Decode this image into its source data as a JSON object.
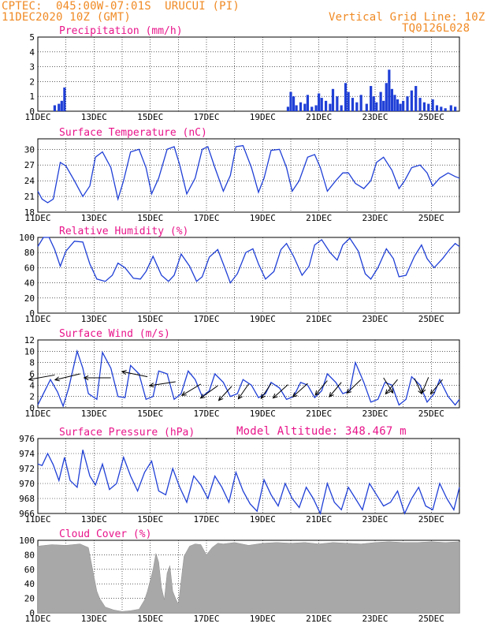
{
  "header": {
    "line1": "CPTEC:  045:00W-07:01S  URUCUI (PI)",
    "line2": "11DEC2020 10Z (GMT)",
    "grid_note": "Vertical Grid Line: 10Z",
    "code": "TQ0126L028",
    "model_altitude": "Model Altitude: 348.467 m"
  },
  "colors": {
    "header_text": "#f08a24",
    "panel_title": "#e8148a",
    "series_line": "#1f3fd6",
    "precip_bar": "#1f3fd6",
    "cloud_fill": "#a8a8a8",
    "wind_arrow": "#000000",
    "grid": "#000000"
  },
  "chart_data": [
    {
      "type": "bar",
      "title": "Precipitation (mm/h)",
      "ylim": [
        0,
        5
      ],
      "yticks": [
        "0",
        "1",
        "2",
        "3",
        "4",
        "5"
      ],
      "xticks": [
        "11DEC",
        "13DEC",
        "15DEC",
        "17DEC",
        "19DEC",
        "21DEC",
        "23DEC",
        "25DEC"
      ],
      "x_unit": "day",
      "x_range": [
        0,
        15
      ],
      "values": [
        [
          0.6,
          0.4
        ],
        [
          0.75,
          0.5
        ],
        [
          0.85,
          0.7
        ],
        [
          0.95,
          1.6
        ],
        [
          8.9,
          0.3
        ],
        [
          9.0,
          1.3
        ],
        [
          9.1,
          1.0
        ],
        [
          9.2,
          0.4
        ],
        [
          9.35,
          0.6
        ],
        [
          9.5,
          0.5
        ],
        [
          9.6,
          1.1
        ],
        [
          9.75,
          0.3
        ],
        [
          9.9,
          0.4
        ],
        [
          10.0,
          1.2
        ],
        [
          10.1,
          0.9
        ],
        [
          10.25,
          0.7
        ],
        [
          10.4,
          0.5
        ],
        [
          10.5,
          1.5
        ],
        [
          10.65,
          1.0
        ],
        [
          10.8,
          0.4
        ],
        [
          10.95,
          1.9
        ],
        [
          11.05,
          1.3
        ],
        [
          11.2,
          0.9
        ],
        [
          11.35,
          0.6
        ],
        [
          11.5,
          1.1
        ],
        [
          11.7,
          0.5
        ],
        [
          11.85,
          1.7
        ],
        [
          11.95,
          1.0
        ],
        [
          12.05,
          0.6
        ],
        [
          12.2,
          1.3
        ],
        [
          12.3,
          0.7
        ],
        [
          12.4,
          1.9
        ],
        [
          12.5,
          2.8
        ],
        [
          12.6,
          1.5
        ],
        [
          12.7,
          1.1
        ],
        [
          12.8,
          0.8
        ],
        [
          12.9,
          0.5
        ],
        [
          13.0,
          0.7
        ],
        [
          13.15,
          1.0
        ],
        [
          13.3,
          1.4
        ],
        [
          13.45,
          1.7
        ],
        [
          13.6,
          0.9
        ],
        [
          13.75,
          0.6
        ],
        [
          13.9,
          0.5
        ],
        [
          14.05,
          0.8
        ],
        [
          14.2,
          0.4
        ],
        [
          14.35,
          0.3
        ],
        [
          14.5,
          0.2
        ],
        [
          14.7,
          0.4
        ],
        [
          14.85,
          0.3
        ]
      ]
    },
    {
      "type": "line",
      "title": "Surface Temperature (nC)",
      "ylim": [
        18,
        32
      ],
      "yticks": [
        "18",
        "21",
        "24",
        "27",
        "30"
      ],
      "x": [
        0,
        0.15,
        0.35,
        0.55,
        0.8,
        1.0,
        1.3,
        1.6,
        1.85,
        2.05,
        2.3,
        2.6,
        2.85,
        3.05,
        3.3,
        3.6,
        3.85,
        4.05,
        4.3,
        4.6,
        4.85,
        5.05,
        5.3,
        5.6,
        5.85,
        6.05,
        6.3,
        6.6,
        6.85,
        7.05,
        7.3,
        7.6,
        7.85,
        8.05,
        8.3,
        8.6,
        8.85,
        9.05,
        9.3,
        9.6,
        9.85,
        10.05,
        10.3,
        10.6,
        10.85,
        11.05,
        11.3,
        11.6,
        11.85,
        12.05,
        12.3,
        12.6,
        12.85,
        13.05,
        13.3,
        13.6,
        13.85,
        14.05,
        14.3,
        14.6,
        14.85,
        15.0
      ],
      "y": [
        22,
        20.5,
        19.8,
        20.5,
        27.5,
        26.8,
        24,
        21,
        23,
        28.5,
        29.5,
        26.5,
        20.5,
        24,
        29.5,
        30,
        26.5,
        21.5,
        24.5,
        30,
        30.5,
        27,
        21.5,
        24.5,
        30,
        30.5,
        26.5,
        22,
        25,
        30.5,
        30.7,
        26.5,
        21.8,
        24.5,
        29.8,
        30,
        26.5,
        22,
        24,
        28.5,
        29,
        26.5,
        22,
        24,
        25.5,
        25.5,
        23.5,
        22.5,
        24,
        27.5,
        28.5,
        26,
        22.5,
        24,
        26.5,
        27,
        25.5,
        23,
        24.5,
        25.5,
        24.8,
        24.5
      ]
    },
    {
      "type": "line",
      "title": "Relative Humidity (%)",
      "ylim": [
        0,
        100
      ],
      "yticks": [
        "0",
        "20",
        "40",
        "60",
        "80",
        "100"
      ],
      "x": [
        0,
        0.2,
        0.4,
        0.6,
        0.8,
        1.0,
        1.3,
        1.6,
        1.85,
        2.1,
        2.4,
        2.65,
        2.85,
        3.1,
        3.4,
        3.65,
        3.85,
        4.1,
        4.4,
        4.65,
        4.85,
        5.1,
        5.4,
        5.65,
        5.85,
        6.1,
        6.4,
        6.65,
        6.85,
        7.1,
        7.4,
        7.65,
        7.85,
        8.1,
        8.4,
        8.65,
        8.85,
        9.1,
        9.4,
        9.65,
        9.85,
        10.1,
        10.4,
        10.65,
        10.85,
        11.1,
        11.4,
        11.65,
        11.85,
        12.1,
        12.4,
        12.65,
        12.85,
        13.1,
        13.4,
        13.65,
        13.85,
        14.1,
        14.4,
        14.65,
        14.85,
        15.0
      ],
      "y": [
        88,
        100,
        100,
        84,
        62,
        82,
        95,
        94,
        65,
        45,
        42,
        50,
        66,
        60,
        46,
        45,
        55,
        75,
        50,
        42,
        50,
        78,
        62,
        42,
        48,
        74,
        84,
        60,
        40,
        52,
        80,
        85,
        65,
        45,
        55,
        84,
        92,
        75,
        50,
        62,
        90,
        97,
        80,
        70,
        90,
        99,
        82,
        52,
        45,
        60,
        85,
        72,
        48,
        50,
        75,
        90,
        72,
        60,
        72,
        84,
        92,
        88
      ]
    },
    {
      "type": "line",
      "title": "Surface Wind (m/s)",
      "ylim": [
        0,
        12
      ],
      "yticks": [
        "0",
        "2",
        "4",
        "6",
        "8",
        "10",
        "12"
      ],
      "x": [
        0,
        0.2,
        0.45,
        0.7,
        0.9,
        1.1,
        1.4,
        1.6,
        1.8,
        2.1,
        2.3,
        2.6,
        2.85,
        3.1,
        3.3,
        3.6,
        3.85,
        4.1,
        4.3,
        4.6,
        4.85,
        5.1,
        5.35,
        5.6,
        5.85,
        6.1,
        6.3,
        6.6,
        6.85,
        7.1,
        7.3,
        7.6,
        7.85,
        8.1,
        8.3,
        8.6,
        8.85,
        9.1,
        9.35,
        9.6,
        9.85,
        10.1,
        10.3,
        10.6,
        10.85,
        11.1,
        11.3,
        11.6,
        11.85,
        12.1,
        12.35,
        12.6,
        12.85,
        13.1,
        13.3,
        13.6,
        13.85,
        14.1,
        14.3,
        14.6,
        14.85,
        15.0
      ],
      "y": [
        0.5,
        2.5,
        5.0,
        2.8,
        0.3,
        3.5,
        10.0,
        7.0,
        2.5,
        1.5,
        9.8,
        7.0,
        2.0,
        1.8,
        7.5,
        6.0,
        1.5,
        2.0,
        6.5,
        6.0,
        1.5,
        2.5,
        6.5,
        5.0,
        2.0,
        3.0,
        6.0,
        4.5,
        2.0,
        2.5,
        5.0,
        4.0,
        1.8,
        2.5,
        4.5,
        3.5,
        1.5,
        2.0,
        4.5,
        4.0,
        1.8,
        3.0,
        6.0,
        4.5,
        2.5,
        3.0,
        8.0,
        4.5,
        1.0,
        1.5,
        4.5,
        4.0,
        0.5,
        1.5,
        5.5,
        4.0,
        1.0,
        2.5,
        5.0,
        2.0,
        0.5,
        1.5
      ],
      "arrows": [
        {
          "x": 0.6,
          "y": 5.8,
          "dx": 1.0,
          "dy": 0.3
        },
        {
          "x": 1.5,
          "y": 6.0,
          "dx": 1.0,
          "dy": 0.4
        },
        {
          "x": 2.6,
          "y": 5.3,
          "dx": 1.0,
          "dy": 0.0
        },
        {
          "x": 3.9,
          "y": 5.5,
          "dx": 0.9,
          "dy": -0.3
        },
        {
          "x": 4.9,
          "y": 4.6,
          "dx": 0.8,
          "dy": 0.2
        },
        {
          "x": 5.8,
          "y": 4.2,
          "dx": 0.7,
          "dy": 0.7
        },
        {
          "x": 6.4,
          "y": 3.9,
          "dx": 0.5,
          "dy": 0.6
        },
        {
          "x": 6.9,
          "y": 3.8,
          "dx": 0.5,
          "dy": 0.9
        },
        {
          "x": 7.5,
          "y": 4.2,
          "dx": 0.5,
          "dy": 1.2
        },
        {
          "x": 8.3,
          "y": 4.3,
          "dx": 0.4,
          "dy": 1.0
        },
        {
          "x": 8.9,
          "y": 4.1,
          "dx": 0.6,
          "dy": 0.9
        },
        {
          "x": 9.6,
          "y": 4.3,
          "dx": 0.6,
          "dy": 0.9
        },
        {
          "x": 10.3,
          "y": 4.8,
          "dx": 0.4,
          "dy": 0.8
        },
        {
          "x": 10.8,
          "y": 4.5,
          "dx": 0.4,
          "dy": 0.8
        },
        {
          "x": 11.5,
          "y": 5.0,
          "dx": 0.5,
          "dy": 0.8
        },
        {
          "x": 12.3,
          "y": 5.3,
          "dx": -0.3,
          "dy": 0.8
        },
        {
          "x": 12.8,
          "y": 5.0,
          "dx": 0.3,
          "dy": 0.6
        },
        {
          "x": 13.4,
          "y": 5.2,
          "dx": -0.2,
          "dy": 0.7
        },
        {
          "x": 13.9,
          "y": 5.4,
          "dx": 0.2,
          "dy": 0.8
        },
        {
          "x": 14.4,
          "y": 5.0,
          "dx": 0.3,
          "dy": 0.6
        }
      ]
    },
    {
      "type": "line",
      "title": "Surface Pressure (hPa)",
      "ylim": [
        966,
        976
      ],
      "yticks": [
        "966",
        "968",
        "970",
        "972",
        "974",
        "976"
      ],
      "x": [
        0,
        0.15,
        0.35,
        0.55,
        0.75,
        0.95,
        1.15,
        1.4,
        1.6,
        1.85,
        2.05,
        2.3,
        2.55,
        2.8,
        3.05,
        3.3,
        3.55,
        3.8,
        4.05,
        4.3,
        4.55,
        4.8,
        5.05,
        5.3,
        5.55,
        5.8,
        6.05,
        6.3,
        6.55,
        6.8,
        7.05,
        7.3,
        7.55,
        7.8,
        8.05,
        8.3,
        8.55,
        8.8,
        9.05,
        9.3,
        9.55,
        9.8,
        10.05,
        10.3,
        10.55,
        10.8,
        11.05,
        11.3,
        11.55,
        11.8,
        12.05,
        12.3,
        12.55,
        12.8,
        13.05,
        13.3,
        13.55,
        13.8,
        14.05,
        14.3,
        14.55,
        14.8,
        15.0
      ],
      "y": [
        972.6,
        972.4,
        974.0,
        972.5,
        970.4,
        973.5,
        970.4,
        969.5,
        974.5,
        971.0,
        969.8,
        972.6,
        969.2,
        970.0,
        973.5,
        971.0,
        969.0,
        971.5,
        973.0,
        969.0,
        968.5,
        972.0,
        969.5,
        967.5,
        971.0,
        969.8,
        968.0,
        971.0,
        969.5,
        967.5,
        971.5,
        969.0,
        967.3,
        966.3,
        970.5,
        968.5,
        967.0,
        970.0,
        968.0,
        966.8,
        969.5,
        968.0,
        966.0,
        970.0,
        967.5,
        966.5,
        969.5,
        968.0,
        966.5,
        970.0,
        968.5,
        967.0,
        967.5,
        969.0,
        966.0,
        968.0,
        969.5,
        967.0,
        966.5,
        970.0,
        968.0,
        966.5,
        969.5
      ]
    },
    {
      "type": "area",
      "title": "Cloud Cover (%)",
      "ylim": [
        0,
        100
      ],
      "yticks": [
        "0",
        "20",
        "40",
        "60",
        "80",
        "100"
      ],
      "x": [
        0,
        0.5,
        1.0,
        1.5,
        1.8,
        2.0,
        2.1,
        2.2,
        2.4,
        2.7,
        3.0,
        3.3,
        3.6,
        3.8,
        3.9,
        4.0,
        4.1,
        4.2,
        4.3,
        4.4,
        4.5,
        4.6,
        4.7,
        4.8,
        4.9,
        5.0,
        5.1,
        5.2,
        5.3,
        5.4,
        5.6,
        5.8,
        6.0,
        6.2,
        6.4,
        6.6,
        7.0,
        7.5,
        8.0,
        8.5,
        9.0,
        9.5,
        10.0,
        10.5,
        11.0,
        11.5,
        12.0,
        12.5,
        13.0,
        13.5,
        14.0,
        14.5,
        15.0
      ],
      "y": [
        92,
        94,
        93,
        95,
        90,
        50,
        30,
        20,
        8,
        4,
        2,
        3,
        5,
        18,
        30,
        45,
        60,
        82,
        70,
        35,
        18,
        55,
        65,
        30,
        20,
        12,
        45,
        78,
        85,
        92,
        95,
        94,
        80,
        90,
        96,
        95,
        97,
        93,
        96,
        97,
        96,
        97,
        95,
        97,
        96,
        95,
        97,
        98,
        97,
        97,
        98,
        97,
        98
      ]
    }
  ]
}
